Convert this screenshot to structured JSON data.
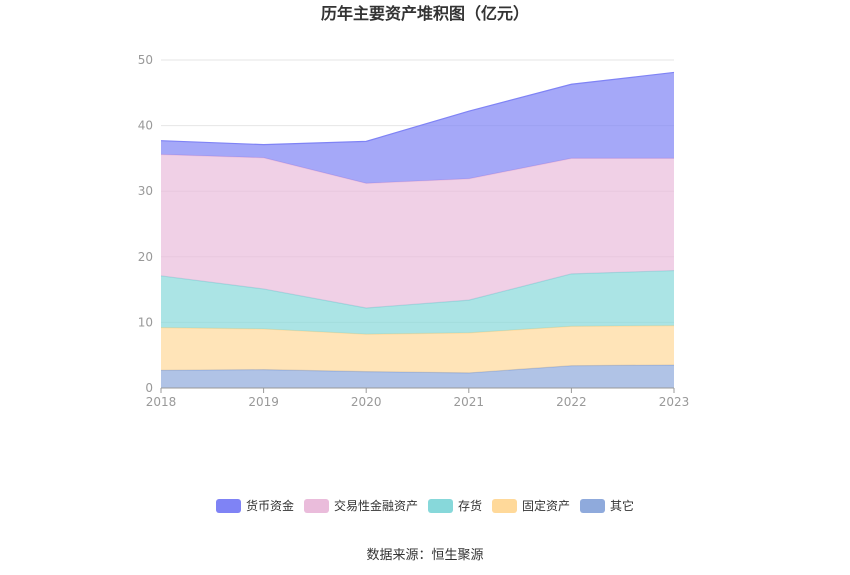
{
  "chart_data": {
    "type": "area",
    "stacked": true,
    "title": "历年主要资产堆积图（亿元）",
    "categories": [
      "2018",
      "2019",
      "2020",
      "2021",
      "2022",
      "2023"
    ],
    "ylim": [
      0,
      50
    ],
    "yticks": [
      0,
      10,
      20,
      30,
      40,
      50
    ],
    "grid": true,
    "legend_position": "bottom",
    "series": [
      {
        "name": "其它",
        "color": "#8FAADC",
        "values": [
          2.7,
          2.8,
          2.5,
          2.3,
          3.4,
          3.5
        ]
      },
      {
        "name": "固定资产",
        "color": "#FFD99A",
        "values": [
          6.5,
          6.2,
          5.7,
          6.1,
          6.0,
          6.0
        ]
      },
      {
        "name": "存货",
        "color": "#87D8DA",
        "values": [
          7.9,
          6.1,
          4.0,
          5.0,
          8.0,
          8.4
        ]
      },
      {
        "name": "交易性金融资产",
        "color": "#EABCDB",
        "values": [
          18.5,
          20.0,
          19.0,
          18.5,
          17.6,
          17.1
        ]
      },
      {
        "name": "货币资金",
        "color": "#7F83F5",
        "values": [
          2.1,
          2.0,
          6.4,
          10.3,
          11.3,
          13.1
        ]
      }
    ],
    "legend_order": [
      "货币资金",
      "交易性金融资产",
      "存货",
      "固定资产",
      "其它"
    ]
  },
  "source": "数据来源：恒生聚源"
}
